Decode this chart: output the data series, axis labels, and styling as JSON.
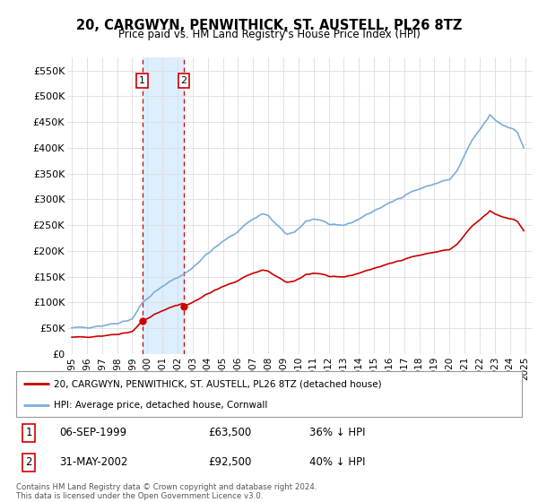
{
  "title": "20, CARGWYN, PENWITHICK, ST. AUSTELL, PL26 8TZ",
  "subtitle": "Price paid vs. HM Land Registry's House Price Index (HPI)",
  "ylim": [
    0,
    575000
  ],
  "yticks": [
    0,
    50000,
    100000,
    150000,
    200000,
    250000,
    300000,
    350000,
    400000,
    450000,
    500000,
    550000
  ],
  "ytick_labels": [
    "£0",
    "£50K",
    "£100K",
    "£150K",
    "£200K",
    "£250K",
    "£300K",
    "£350K",
    "£400K",
    "£450K",
    "£500K",
    "£550K"
  ],
  "xlim_start": 1994.7,
  "xlim_end": 2025.5,
  "xtick_years": [
    1995,
    1996,
    1997,
    1998,
    1999,
    2000,
    2001,
    2002,
    2003,
    2004,
    2005,
    2006,
    2007,
    2008,
    2009,
    2010,
    2011,
    2012,
    2013,
    2014,
    2015,
    2016,
    2017,
    2018,
    2019,
    2020,
    2021,
    2022,
    2023,
    2024,
    2025
  ],
  "hpi_color": "#7aadda",
  "price_color": "#cc0000",
  "sale1_x": 1999.67,
  "sale1_y": 63500,
  "sale2_x": 2002.41,
  "sale2_y": 92500,
  "sale1_label": "06-SEP-1999",
  "sale1_price": "£63,500",
  "sale1_hpi": "36% ↓ HPI",
  "sale2_label": "31-MAY-2002",
  "sale2_price": "£92,500",
  "sale2_hpi": "40% ↓ HPI",
  "legend_line1": "20, CARGWYN, PENWITHICK, ST. AUSTELL, PL26 8TZ (detached house)",
  "legend_line2": "HPI: Average price, detached house, Cornwall",
  "footnote": "Contains HM Land Registry data © Crown copyright and database right 2024.\nThis data is licensed under the Open Government Licence v3.0.",
  "bg_color": "#ffffff",
  "grid_color": "#dddddd",
  "shade_color": "#ddeeff"
}
